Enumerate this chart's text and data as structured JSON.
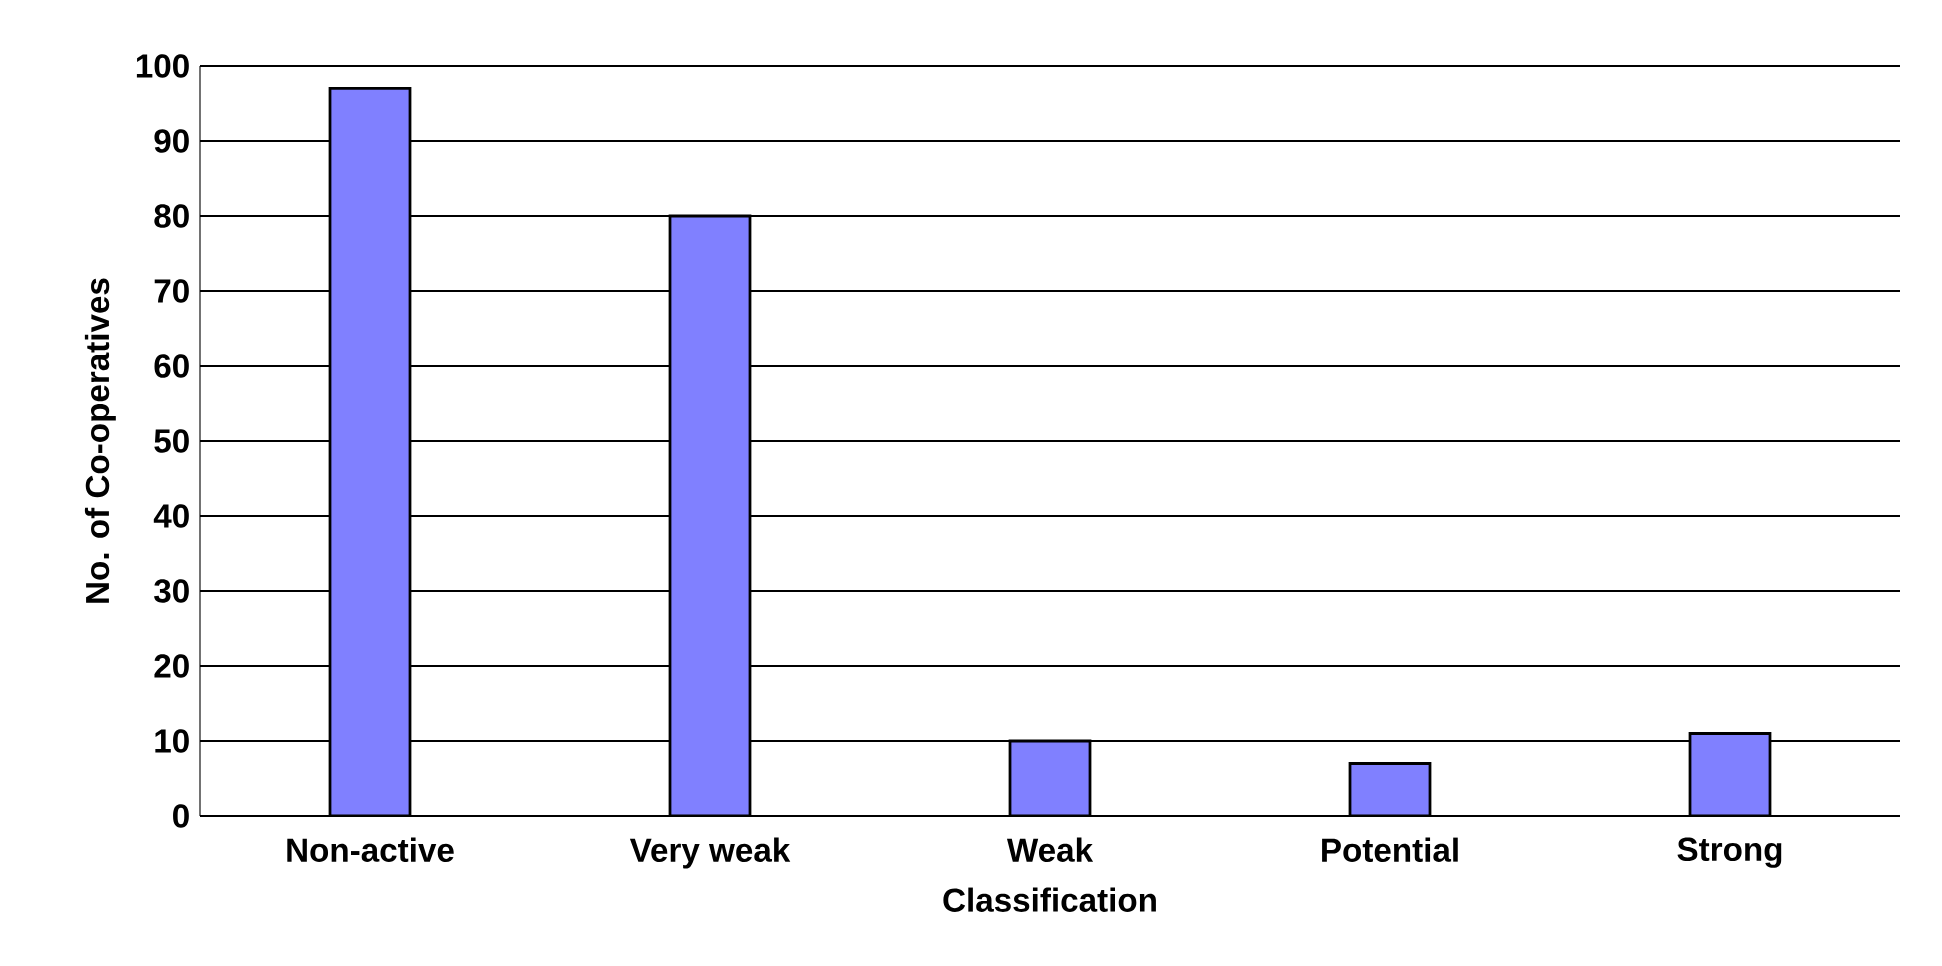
{
  "chart_data": {
    "type": "bar",
    "xlabel": "Classification",
    "ylabel": "No. of Co-operatives",
    "categories": [
      "Non-active",
      "Very weak",
      "Weak",
      "Potential",
      "Strong"
    ],
    "values": [
      97,
      80,
      10,
      7,
      11
    ],
    "color": "#8080ff",
    "ylim": [
      0,
      100
    ],
    "yticks": [
      0,
      10,
      20,
      30,
      40,
      50,
      60,
      70,
      80,
      90,
      100
    ],
    "grid": "y"
  }
}
